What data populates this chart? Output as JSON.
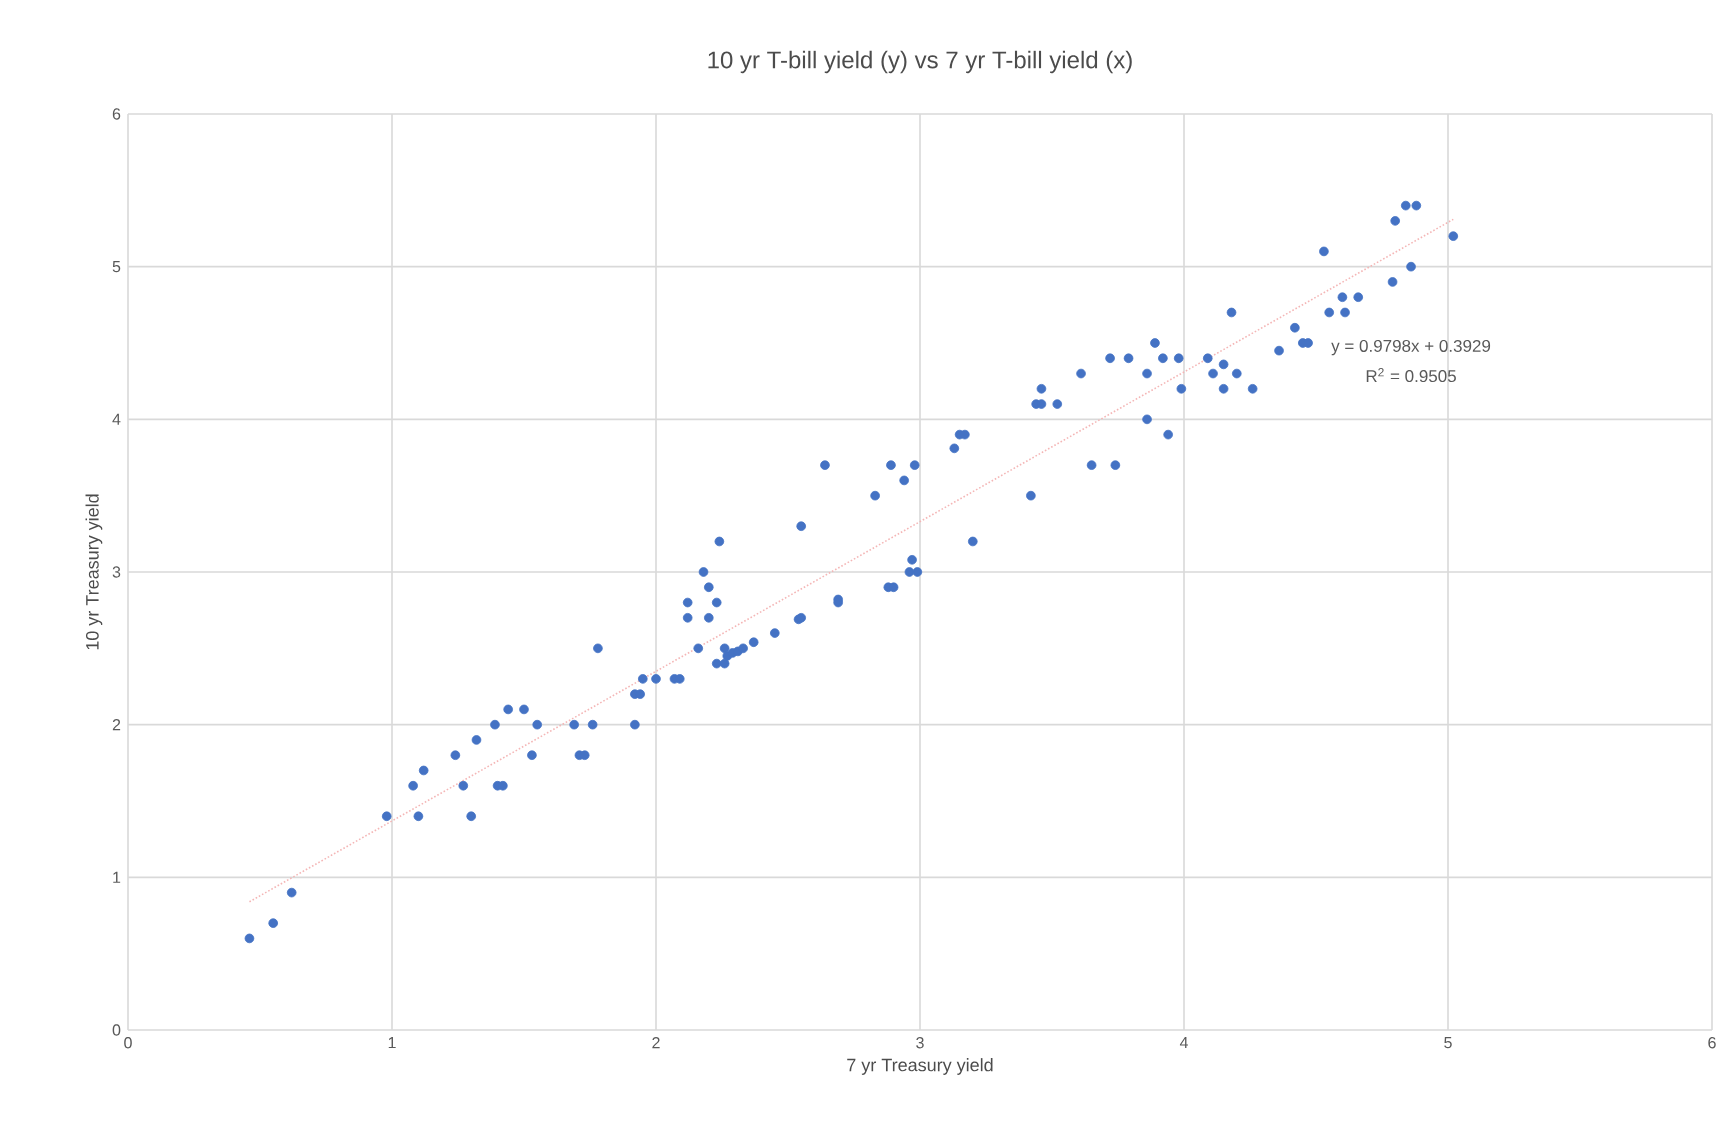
{
  "chart_data": {
    "type": "scatter",
    "title": "10 yr T-bill yield (y) vs 7 yr T-bill yield (x)",
    "xlabel": "7 yr Treasury yield",
    "ylabel": "10 yr Treasury yield",
    "xlim": [
      0,
      6
    ],
    "ylim": [
      0,
      6
    ],
    "xticks": [
      0,
      1,
      2,
      3,
      4,
      5,
      6
    ],
    "yticks": [
      0,
      1,
      2,
      3,
      4,
      5,
      6
    ],
    "grid": true,
    "series": [
      {
        "marker": "circle",
        "color": "#4472c4",
        "x": [
          0.46,
          0.55,
          0.62,
          0.98,
          1.08,
          1.1,
          1.12,
          1.24,
          1.27,
          1.3,
          1.32,
          1.39,
          1.4,
          1.42,
          1.44,
          1.5,
          1.53,
          1.55,
          1.69,
          1.71,
          1.73,
          1.76,
          1.78,
          1.92,
          1.94,
          1.92,
          1.95,
          2.0,
          2.07,
          2.09,
          2.16,
          2.12,
          2.12,
          2.2,
          2.23,
          2.2,
          2.18,
          2.24,
          2.26,
          2.23,
          2.26,
          2.27,
          2.29,
          2.31,
          2.33,
          2.37,
          2.45,
          2.54,
          2.55,
          2.55,
          2.64,
          2.69,
          2.69,
          2.83,
          2.89,
          2.88,
          2.9,
          2.94,
          2.98,
          2.97,
          2.96,
          2.99,
          3.13,
          3.15,
          3.17,
          3.2,
          3.42,
          3.44,
          3.46,
          3.46,
          3.52,
          3.61,
          3.65,
          3.72,
          3.74,
          3.79,
          3.86,
          3.86,
          3.89,
          3.92,
          3.94,
          3.98,
          3.99,
          4.09,
          4.11,
          4.15,
          4.15,
          4.18,
          4.2,
          4.26,
          4.36,
          4.42,
          4.45,
          4.47,
          4.53,
          4.55,
          4.6,
          4.61,
          4.66,
          4.79,
          4.8,
          4.84,
          4.88,
          4.86,
          5.02
        ],
        "values": [
          0.6,
          0.7,
          0.9,
          1.4,
          1.6,
          1.4,
          1.7,
          1.8,
          1.6,
          1.4,
          1.9,
          2.0,
          1.6,
          1.6,
          2.1,
          2.1,
          1.8,
          2.0,
          2.0,
          1.8,
          1.8,
          2.0,
          2.5,
          2.2,
          2.2,
          2.0,
          2.3,
          2.3,
          2.3,
          2.3,
          2.5,
          2.7,
          2.8,
          2.7,
          2.8,
          2.9,
          3.0,
          3.2,
          2.5,
          2.4,
          2.4,
          2.45,
          2.47,
          2.48,
          2.5,
          2.54,
          2.6,
          2.69,
          2.7,
          3.3,
          3.7,
          2.82,
          2.8,
          3.5,
          3.7,
          2.9,
          2.9,
          3.6,
          3.7,
          3.08,
          3.0,
          3.0,
          3.81,
          3.9,
          3.9,
          3.2,
          3.5,
          4.1,
          4.1,
          4.2,
          4.1,
          4.3,
          3.7,
          4.4,
          3.7,
          4.4,
          4.3,
          4.0,
          4.5,
          4.4,
          3.9,
          4.4,
          4.2,
          4.4,
          4.3,
          4.36,
          4.2,
          4.7,
          4.3,
          4.2,
          4.45,
          4.6,
          4.5,
          4.5,
          5.1,
          4.7,
          4.8,
          4.7,
          4.8,
          4.9,
          5.3,
          5.4,
          5.4,
          5.0,
          5.2
        ]
      },
      {
        "type": "line",
        "color": "#f4b6b6",
        "line_style": "dotted",
        "x": [
          0.46,
          5.02
        ],
        "values": [
          0.84,
          5.31
        ]
      }
    ],
    "annotations": [
      "y = 0.9798x + 0.3929",
      "R$^{2}$ = 0.9505"
    ]
  }
}
